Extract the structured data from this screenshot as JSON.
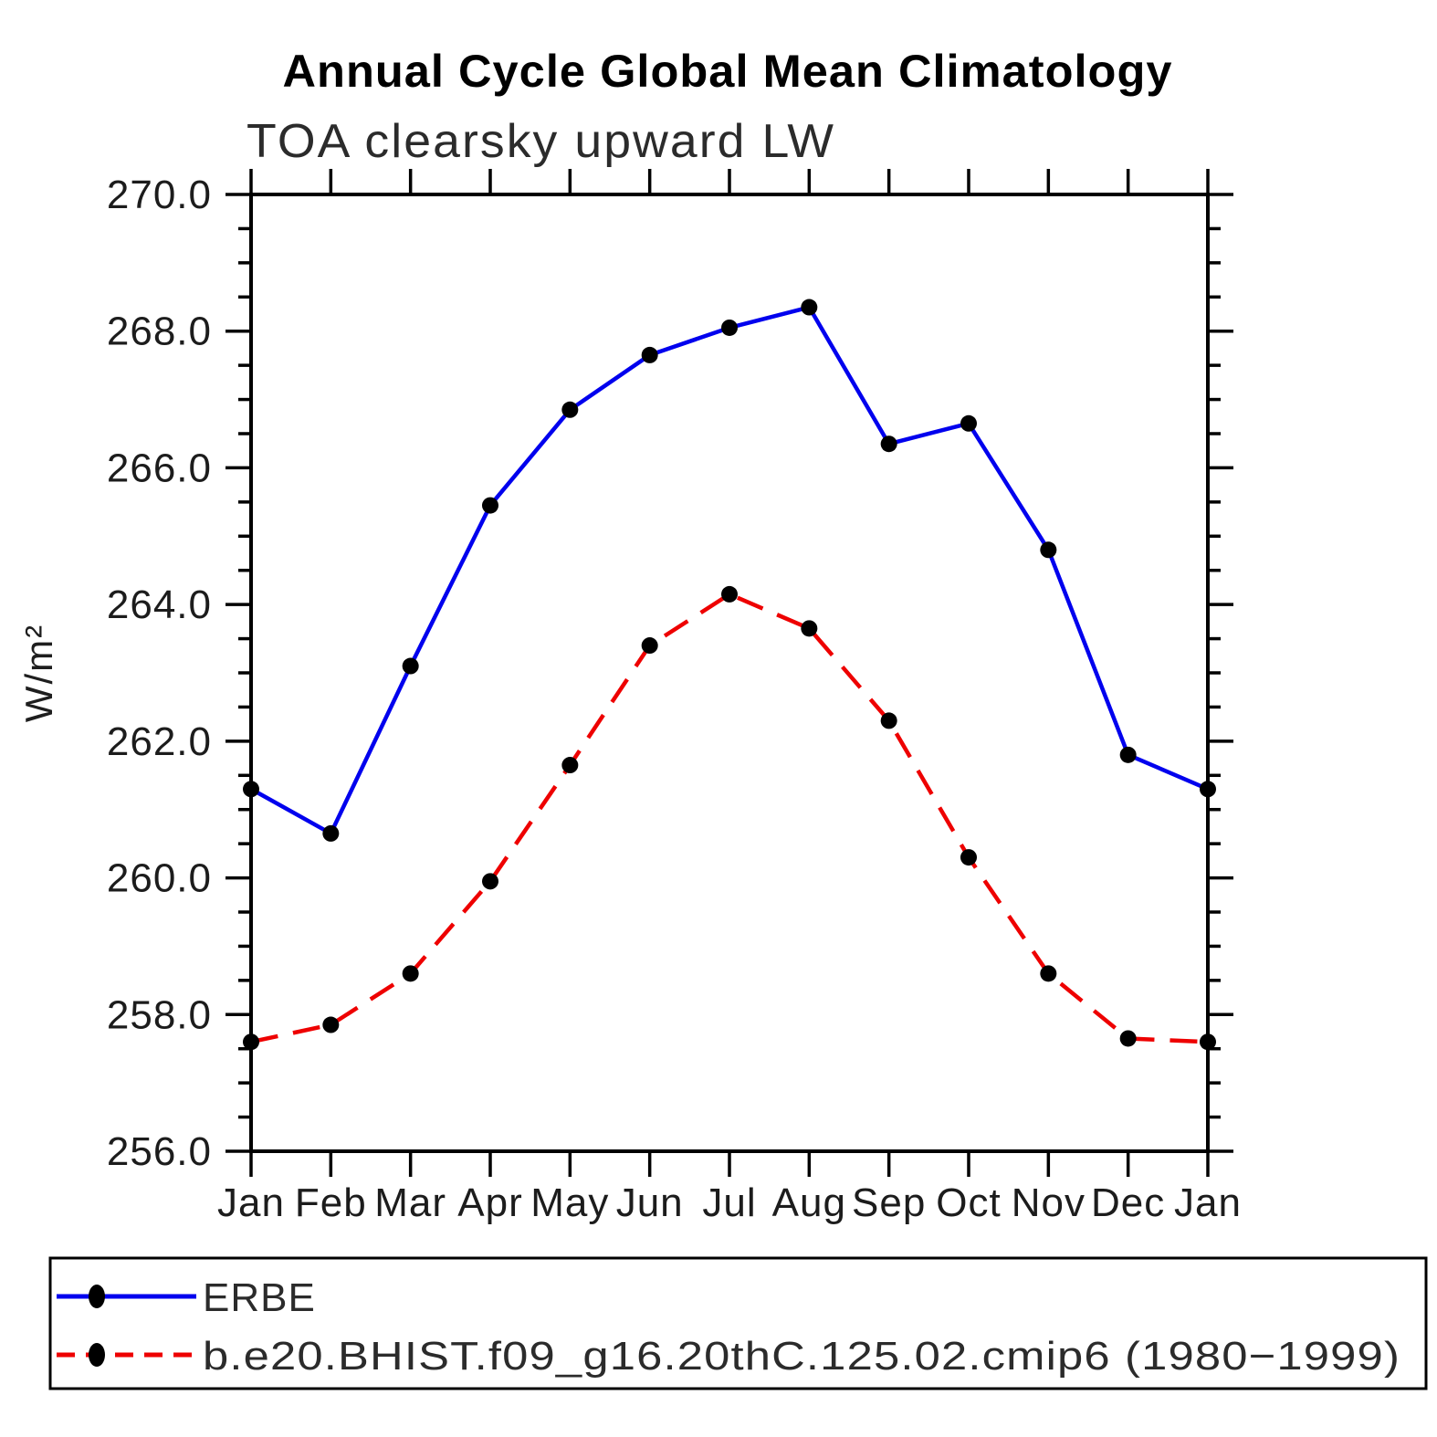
{
  "chart_data": {
    "type": "line",
    "title": "Annual Cycle Global Mean Climatology",
    "subtitle": "TOA clearsky upward LW",
    "ylabel": "W/m²",
    "xlabel": "",
    "x_tick_labels": [
      "Jan",
      "Feb",
      "Mar",
      "Apr",
      "May",
      "Jun",
      "Jul",
      "Aug",
      "Sep",
      "Oct",
      "Nov",
      "Dec",
      "Jan"
    ],
    "ylim": [
      256.0,
      270.0
    ],
    "y_ticks": [
      256.0,
      258.0,
      260.0,
      262.0,
      264.0,
      266.0,
      268.0,
      270.0
    ],
    "y_tick_labels": [
      "256.0",
      "258.0",
      "260.0",
      "262.0",
      "264.0",
      "266.0",
      "268.0",
      "270.0"
    ],
    "y_minor_step": 0.5,
    "grid": "off",
    "legend_position": "bottom-box",
    "marker_color": "#000000",
    "series": [
      {
        "name": "ERBE",
        "color": "#0000ee",
        "style": "solid",
        "marker": "circle",
        "values": [
          261.3,
          260.65,
          263.1,
          265.45,
          266.85,
          267.65,
          268.05,
          268.35,
          266.35,
          266.65,
          264.8,
          261.8,
          261.3
        ]
      },
      {
        "name": "b.e20.BHIST.f09_g16.20thC.125.02.cmip6 (1980−1999)",
        "color": "#ee0000",
        "style": "dashed",
        "marker": "circle",
        "values": [
          257.6,
          257.85,
          258.6,
          259.95,
          261.65,
          263.4,
          264.15,
          263.65,
          262.3,
          260.3,
          258.6,
          257.65,
          257.6
        ]
      }
    ]
  }
}
